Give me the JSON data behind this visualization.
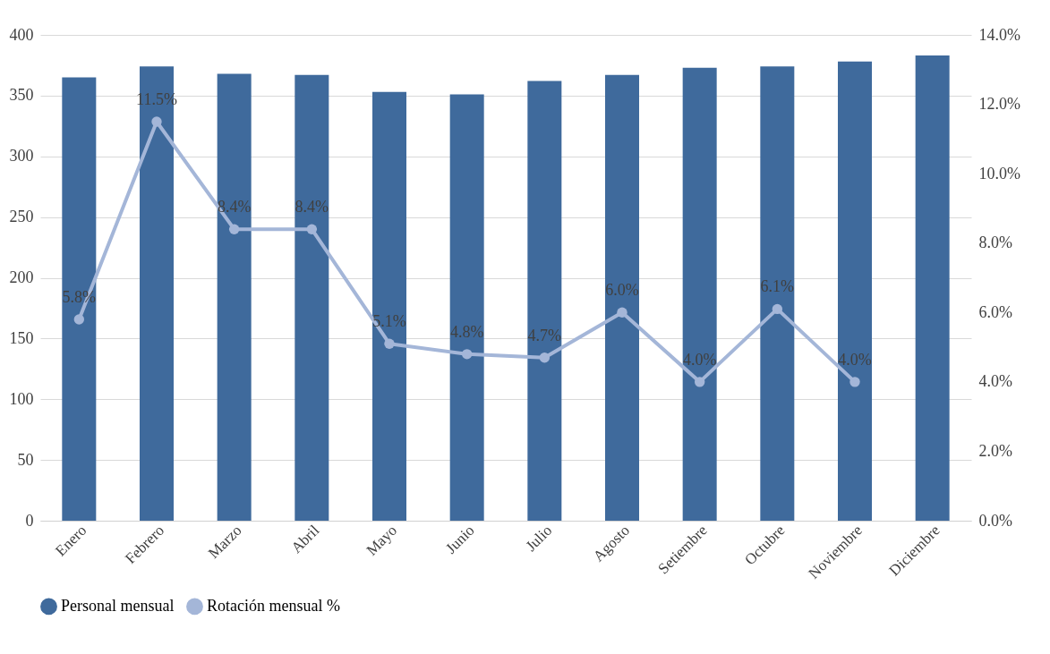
{
  "chart_data": {
    "type": "bar",
    "categories": [
      "Enero",
      "Febrero",
      "Marzo",
      "Abril",
      "Mayo",
      "Junio",
      "Julio",
      "Agosto",
      "Setiembre",
      "Octubre",
      "Noviembre",
      "Diciembre"
    ],
    "series": [
      {
        "name": "Personal mensual",
        "color": "#3f6a9c",
        "values": [
          365,
          374,
          368,
          367,
          353,
          351,
          362,
          367,
          373,
          374,
          378,
          383
        ]
      },
      {
        "name": "Rotación mensual %",
        "type": "line",
        "axis": "y2",
        "color": "#a4b6d8",
        "marker": "circle",
        "values": [
          5.8,
          11.5,
          8.4,
          8.4,
          5.1,
          4.8,
          4.7,
          6.0,
          4.0,
          6.1,
          4.0,
          null
        ],
        "value_labels": [
          "5.8%",
          "11.5%",
          "8.4%",
          "8.4%",
          "5.1%",
          "4.8%",
          "4.7%",
          "6.0%",
          "4.0%",
          "6.1%",
          "4.0%",
          null
        ]
      }
    ],
    "ylim": [
      0,
      400
    ],
    "yticks": [
      0,
      50,
      100,
      150,
      200,
      250,
      300,
      350,
      400
    ],
    "y2lim": [
      0,
      14
    ],
    "y2ticks": [
      {
        "value": 0,
        "label": "0.0%"
      },
      {
        "value": 2,
        "label": "2.0%"
      },
      {
        "value": 4,
        "label": "4.0%"
      },
      {
        "value": 6,
        "label": "6.0%"
      },
      {
        "value": 8,
        "label": "8.0%"
      },
      {
        "value": 10,
        "label": "10.0%"
      },
      {
        "value": 12,
        "label": "12.0%"
      },
      {
        "value": 14,
        "label": "14.0%"
      }
    ],
    "grid": "y",
    "legend": "bottom"
  }
}
